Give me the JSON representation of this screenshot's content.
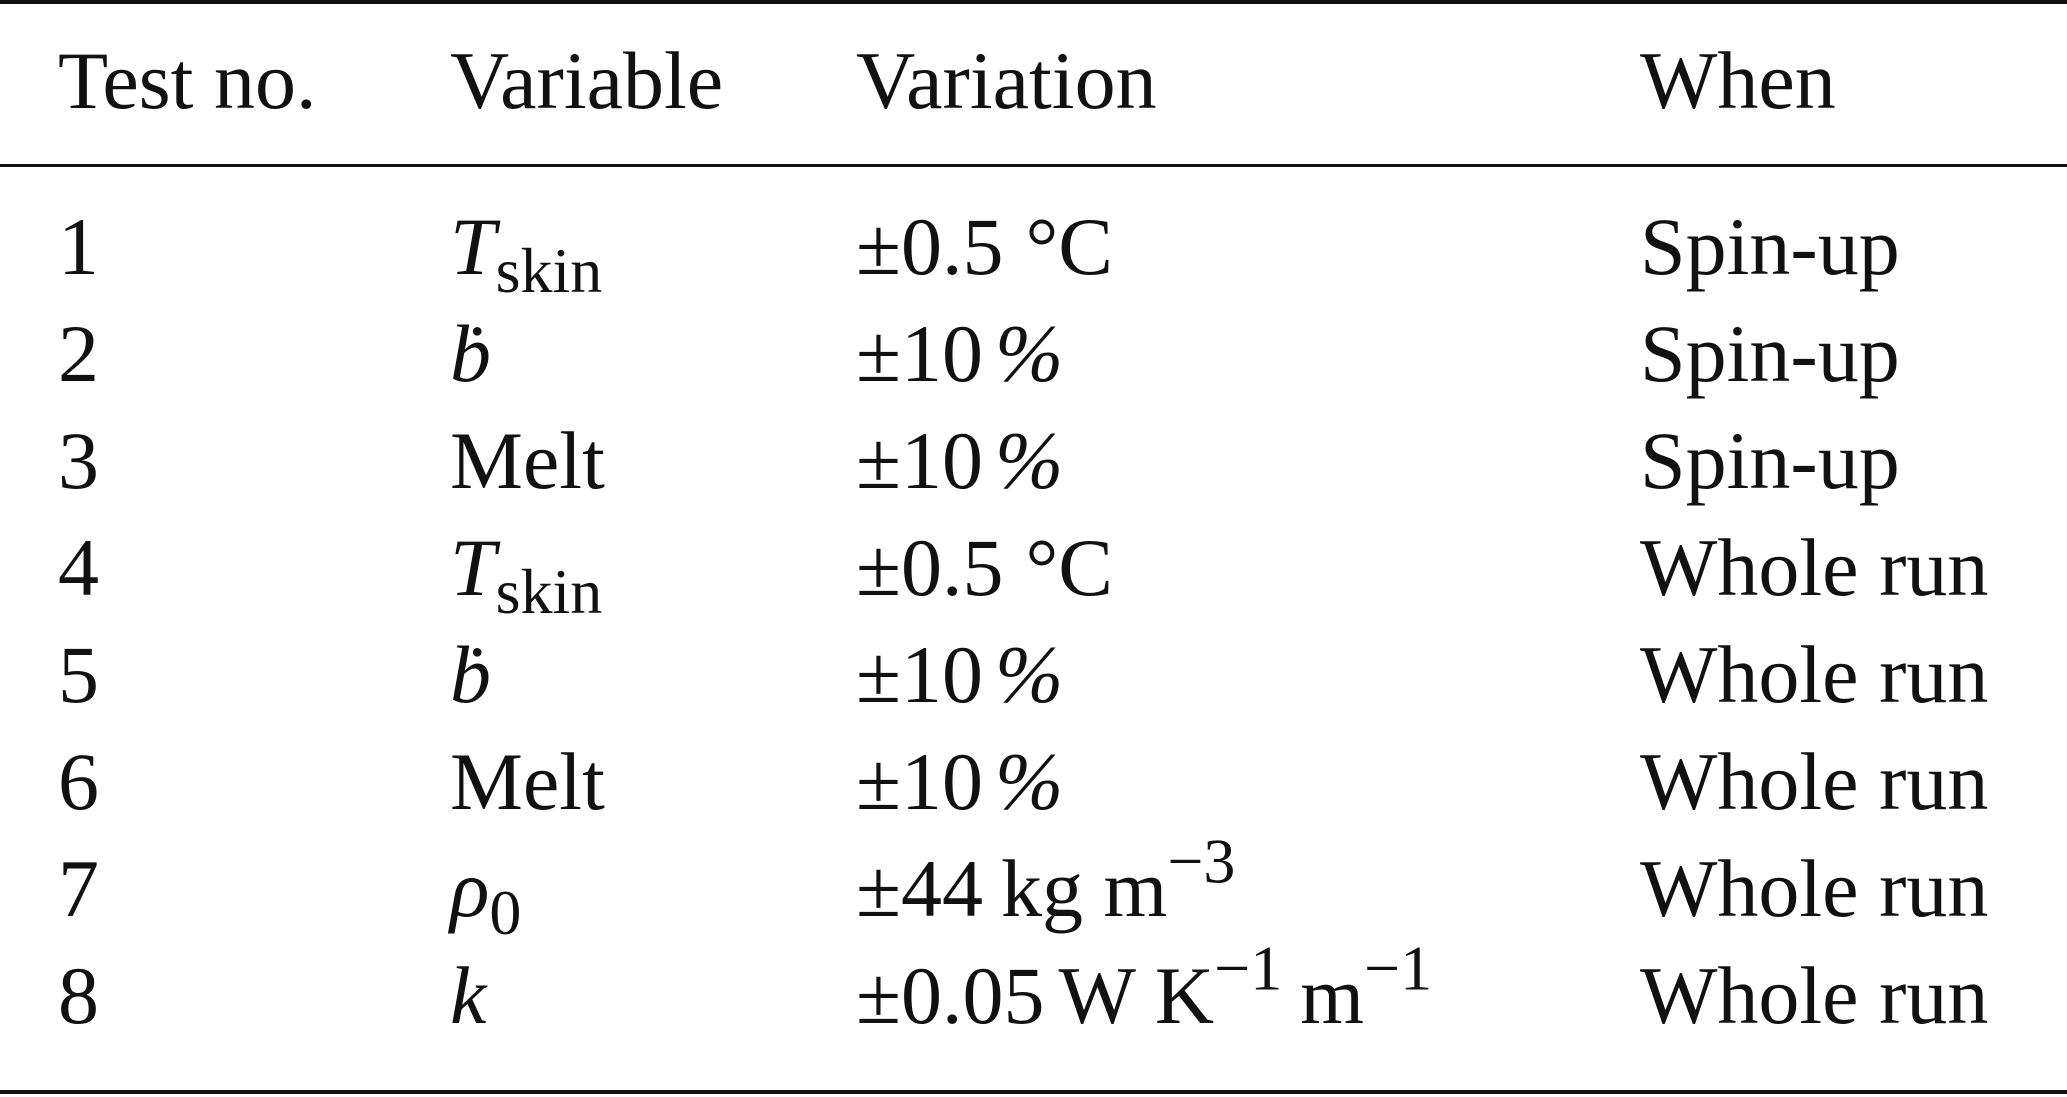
{
  "table": {
    "headers": {
      "test_no": "Test no.",
      "variable": "Variable",
      "variation": "Variation",
      "when": "When"
    },
    "rows": [
      {
        "test_no": "1",
        "variable_symbol": "T",
        "variable_sub": "skin",
        "variable_text": "",
        "variation_value": "±0.5",
        "variation_unit": "°C",
        "variation_sup": "",
        "variation_unit2": "",
        "variation_sup2": "",
        "when": "Spin-up"
      },
      {
        "test_no": "2",
        "variable_symbol": "ḃ",
        "variable_sub": "",
        "variable_text": "",
        "variation_value": "±10",
        "variation_unit": "%",
        "variation_sup": "",
        "variation_unit2": "",
        "variation_sup2": "",
        "when": "Spin-up"
      },
      {
        "test_no": "3",
        "variable_symbol": "",
        "variable_sub": "",
        "variable_text": "Melt",
        "variation_value": "±10",
        "variation_unit": "%",
        "variation_sup": "",
        "variation_unit2": "",
        "variation_sup2": "",
        "when": "Spin-up"
      },
      {
        "test_no": "4",
        "variable_symbol": "T",
        "variable_sub": "skin",
        "variable_text": "",
        "variation_value": "±0.5",
        "variation_unit": "°C",
        "variation_sup": "",
        "variation_unit2": "",
        "variation_sup2": "",
        "when": "Whole run"
      },
      {
        "test_no": "5",
        "variable_symbol": "ḃ",
        "variable_sub": "",
        "variable_text": "",
        "variation_value": "±10",
        "variation_unit": "%",
        "variation_sup": "",
        "variation_unit2": "",
        "variation_sup2": "",
        "when": "Whole run"
      },
      {
        "test_no": "6",
        "variable_symbol": "",
        "variable_sub": "",
        "variable_text": "Melt",
        "variation_value": "±10",
        "variation_unit": "%",
        "variation_sup": "",
        "variation_unit2": "",
        "variation_sup2": "",
        "when": "Whole run"
      },
      {
        "test_no": "7",
        "variable_symbol": "ρ",
        "variable_sub": "0",
        "variable_text": "",
        "variation_value": "±44",
        "variation_unit": "kg m",
        "variation_sup": "−3",
        "variation_unit2": "",
        "variation_sup2": "",
        "when": "Whole run"
      },
      {
        "test_no": "8",
        "variable_symbol": "k",
        "variable_sub": "",
        "variable_text": "",
        "variation_value": "±0.05",
        "variation_unit": "W K",
        "variation_sup": "−1",
        "variation_unit2": "m",
        "variation_sup2": "−1",
        "when": "Whole run"
      }
    ]
  }
}
